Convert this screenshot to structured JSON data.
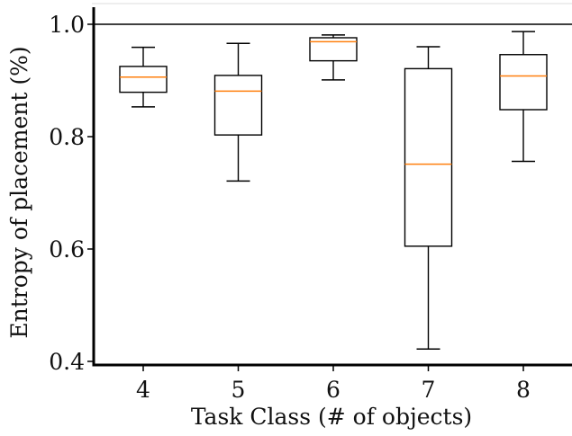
{
  "chart_data": {
    "type": "box",
    "xlabel": "Task Class (# of objects)",
    "ylabel": "Entropy of placement (%)",
    "ylim": [
      0.39,
      1.035
    ],
    "yticks": [
      "0.4",
      "0.6",
      "0.8",
      "1.0"
    ],
    "reference_line": 1.0,
    "grid": false,
    "colors": {
      "box": "#000000",
      "median": "#ff7f0e"
    },
    "boxes": [
      {
        "category": "4",
        "whisker_low": 0.853,
        "q1": 0.879,
        "median": 0.906,
        "q3": 0.925,
        "whisker_high": 0.959
      },
      {
        "category": "5",
        "whisker_low": 0.721,
        "q1": 0.803,
        "median": 0.881,
        "q3": 0.909,
        "whisker_high": 0.966
      },
      {
        "category": "6",
        "whisker_low": 0.901,
        "q1": 0.935,
        "median": 0.969,
        "q3": 0.976,
        "whisker_high": 0.981
      },
      {
        "category": "7",
        "whisker_low": 0.422,
        "q1": 0.605,
        "median": 0.751,
        "q3": 0.921,
        "whisker_high": 0.96
      },
      {
        "category": "8",
        "whisker_low": 0.756,
        "q1": 0.848,
        "median": 0.908,
        "q3": 0.946,
        "whisker_high": 0.987
      }
    ]
  }
}
